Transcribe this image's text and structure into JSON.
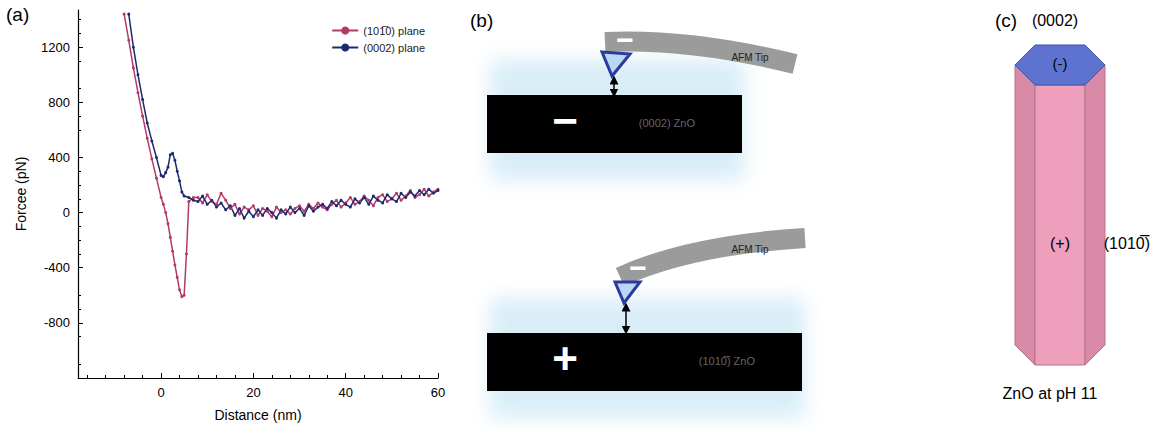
{
  "chart_data": {
    "type": "line",
    "panel": "(a)",
    "x_label": "Distance (nm)",
    "y_label": "Forcee (pN)",
    "xlim": [
      -18,
      60
    ],
    "xticks": [
      0,
      20,
      40,
      60
    ],
    "ylim": [
      -1200,
      1470
    ],
    "yticks": [
      -800,
      -400,
      0,
      400,
      800,
      1200
    ],
    "grid": false,
    "legend": "top-right",
    "series": [
      {
        "name": "(101̅0) plane",
        "color": "#b23a68",
        "marker": "circle",
        "x": [
          -8,
          -7,
          -6,
          -5,
          -4,
          -3,
          -2,
          -1,
          0,
          0.5,
          1,
          1.5,
          2,
          2.5,
          3,
          3.5,
          4,
          4.5,
          5,
          5.5,
          6,
          7,
          8,
          9,
          10,
          11,
          12,
          13,
          14,
          15,
          16,
          17,
          18,
          19,
          20,
          21,
          22,
          23,
          24,
          25,
          26,
          27,
          28,
          29,
          30,
          31,
          32,
          33,
          34,
          35,
          36,
          37,
          38,
          39,
          40,
          41,
          42,
          43,
          44,
          45,
          46,
          47,
          48,
          49,
          50,
          51,
          52,
          53,
          54,
          55,
          56,
          57,
          58,
          59,
          60
        ],
        "values": [
          1440,
          1250,
          1050,
          870,
          700,
          540,
          390,
          250,
          110,
          60,
          0,
          -80,
          -180,
          -280,
          -380,
          -470,
          -560,
          -610,
          -600,
          -300,
          80,
          110,
          110,
          70,
          130,
          80,
          60,
          140,
          90,
          30,
          60,
          -10,
          40,
          20,
          50,
          -20,
          30,
          10,
          -30,
          40,
          0,
          20,
          -10,
          30,
          50,
          10,
          60,
          30,
          70,
          40,
          20,
          60,
          90,
          40,
          70,
          110,
          60,
          80,
          120,
          90,
          50,
          110,
          130,
          80,
          100,
          140,
          90,
          120,
          160,
          110,
          130,
          170,
          120,
          150,
          170
        ]
      },
      {
        "name": "(0002) plane",
        "color": "#1e2a6e",
        "marker": "circle",
        "x": [
          -7,
          -6,
          -5,
          -4,
          -3,
          -2,
          -1,
          0,
          0.5,
          1,
          1.5,
          2,
          2.5,
          3,
          3.5,
          4,
          4.5,
          5,
          6,
          7,
          8,
          9,
          10,
          11,
          12,
          13,
          14,
          15,
          16,
          17,
          18,
          19,
          20,
          21,
          22,
          23,
          24,
          25,
          26,
          27,
          28,
          29,
          30,
          31,
          32,
          33,
          34,
          35,
          36,
          37,
          38,
          39,
          40,
          41,
          42,
          43,
          44,
          45,
          46,
          47,
          48,
          49,
          50,
          51,
          52,
          53,
          54,
          55,
          56,
          57,
          58,
          59,
          60
        ],
        "values": [
          1440,
          1200,
          1000,
          820,
          650,
          520,
          400,
          270,
          260,
          290,
          330,
          420,
          430,
          380,
          300,
          230,
          150,
          120,
          110,
          90,
          80,
          120,
          60,
          90,
          40,
          70,
          20,
          50,
          -20,
          30,
          -40,
          10,
          -30,
          20,
          -20,
          30,
          0,
          -40,
          20,
          -10,
          40,
          0,
          30,
          -20,
          50,
          10,
          40,
          60,
          30,
          80,
          50,
          90,
          60,
          40,
          100,
          70,
          110,
          60,
          120,
          90,
          70,
          130,
          100,
          80,
          140,
          110,
          150,
          120,
          160,
          130,
          170,
          140,
          160
        ]
      }
    ]
  },
  "diagram_b": {
    "panel": "(b)",
    "top": {
      "tip_label": "AFM Tip",
      "tip_charge": "−",
      "surface_charge": "−",
      "surface_label": "(0002) ZnO"
    },
    "bottom": {
      "tip_label": "AFM Tip",
      "tip_charge": "−",
      "surface_charge": "+",
      "surface_label": "(1010̅) ZnO"
    }
  },
  "diagram_c": {
    "panel": "(c)",
    "top_face_label": "(0002)",
    "top_charge": "(-)",
    "side_charge": "(+)",
    "side_label": "(1010̅)",
    "caption": "ZnO at pH 11"
  }
}
